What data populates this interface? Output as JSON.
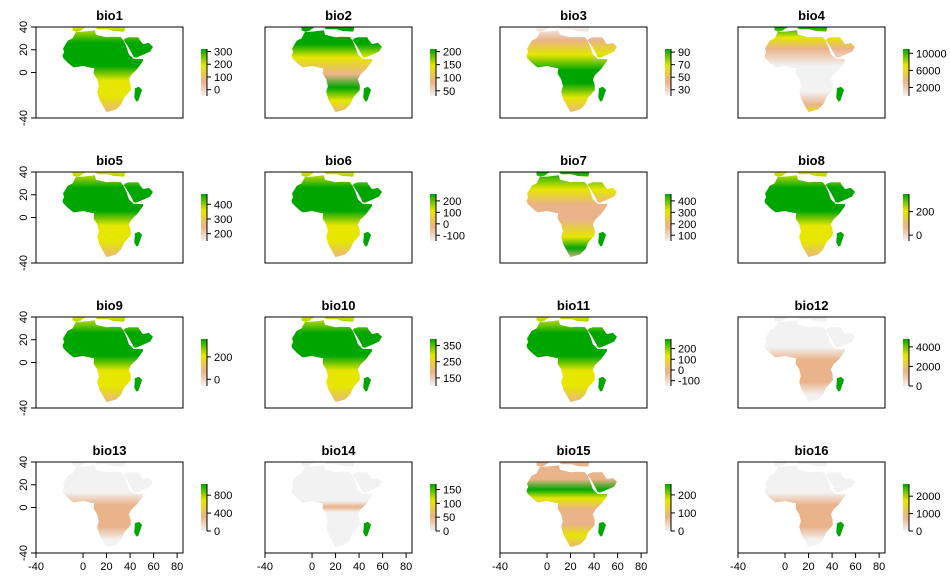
{
  "chart_data": {
    "type": "heatmap",
    "layout": {
      "rows": 4,
      "cols": 4
    },
    "xlim": [
      -40,
      85
    ],
    "ylim": [
      -40,
      40
    ],
    "x_ticks": [
      -40,
      0,
      20,
      40,
      60,
      80
    ],
    "y_ticks": [
      -40,
      0,
      20,
      40
    ],
    "colors": {
      "high": "#00a600",
      "mid": "#e6e600",
      "low": "#eab38a",
      "lowest": "#f2f2f2",
      "ocean": "#ffffff"
    },
    "panels": [
      {
        "title": "bio1",
        "legend_ticks": [
          "300",
          "200",
          "100",
          "0"
        ],
        "legend_range": [
          -50,
          320
        ],
        "pattern": "temperature"
      },
      {
        "title": "bio2",
        "legend_ticks": [
          "200",
          "150",
          "100",
          "50"
        ],
        "legend_range": [
          30,
          210
        ],
        "pattern": "range"
      },
      {
        "title": "bio3",
        "legend_ticks": [
          "90",
          "70",
          "50",
          "30"
        ],
        "legend_range": [
          20,
          95
        ],
        "pattern": "isothermality"
      },
      {
        "title": "bio4",
        "legend_ticks": [
          "10000",
          "6000",
          "2000"
        ],
        "legend_range": [
          0,
          11000
        ],
        "pattern": "seasonality"
      },
      {
        "title": "bio5",
        "legend_ticks": [
          "400",
          "300",
          "200"
        ],
        "legend_range": [
          150,
          470
        ],
        "pattern": "temperature"
      },
      {
        "title": "bio6",
        "legend_ticks": [
          "200",
          "100",
          "0",
          "-100"
        ],
        "legend_range": [
          -150,
          260
        ],
        "pattern": "temperature"
      },
      {
        "title": "bio7",
        "legend_ticks": [
          "400",
          "300",
          "200",
          "100"
        ],
        "legend_range": [
          50,
          460
        ],
        "pattern": "annual_range"
      },
      {
        "title": "bio8",
        "legend_ticks": [
          "200",
          "0"
        ],
        "legend_range": [
          -50,
          350
        ],
        "pattern": "temperature"
      },
      {
        "title": "bio9",
        "legend_ticks": [
          "200",
          "0"
        ],
        "legend_range": [
          -60,
          360
        ],
        "pattern": "temperature"
      },
      {
        "title": "bio10",
        "legend_ticks": [
          "350",
          "250",
          "150"
        ],
        "legend_range": [
          100,
          390
        ],
        "pattern": "temperature"
      },
      {
        "title": "bio11",
        "legend_ticks": [
          "200",
          "100",
          "0",
          "-100"
        ],
        "legend_range": [
          -150,
          290
        ],
        "pattern": "temperature"
      },
      {
        "title": "bio12",
        "legend_ticks": [
          "4000",
          "2000",
          "0"
        ],
        "legend_range": [
          0,
          4800
        ],
        "pattern": "precip"
      },
      {
        "title": "bio13",
        "legend_ticks": [
          "800",
          "400",
          "0"
        ],
        "legend_range": [
          0,
          1050
        ],
        "pattern": "precip"
      },
      {
        "title": "bio14",
        "legend_ticks": [
          "150",
          "100",
          "50",
          "0"
        ],
        "legend_range": [
          0,
          170
        ],
        "pattern": "dry"
      },
      {
        "title": "bio15",
        "legend_ticks": [
          "200",
          "100",
          "0"
        ],
        "legend_range": [
          0,
          260
        ],
        "pattern": "precip_season"
      },
      {
        "title": "bio16",
        "legend_ticks": [
          "2000",
          "1000",
          "0"
        ],
        "legend_range": [
          0,
          2700
        ],
        "pattern": "precip"
      }
    ]
  }
}
